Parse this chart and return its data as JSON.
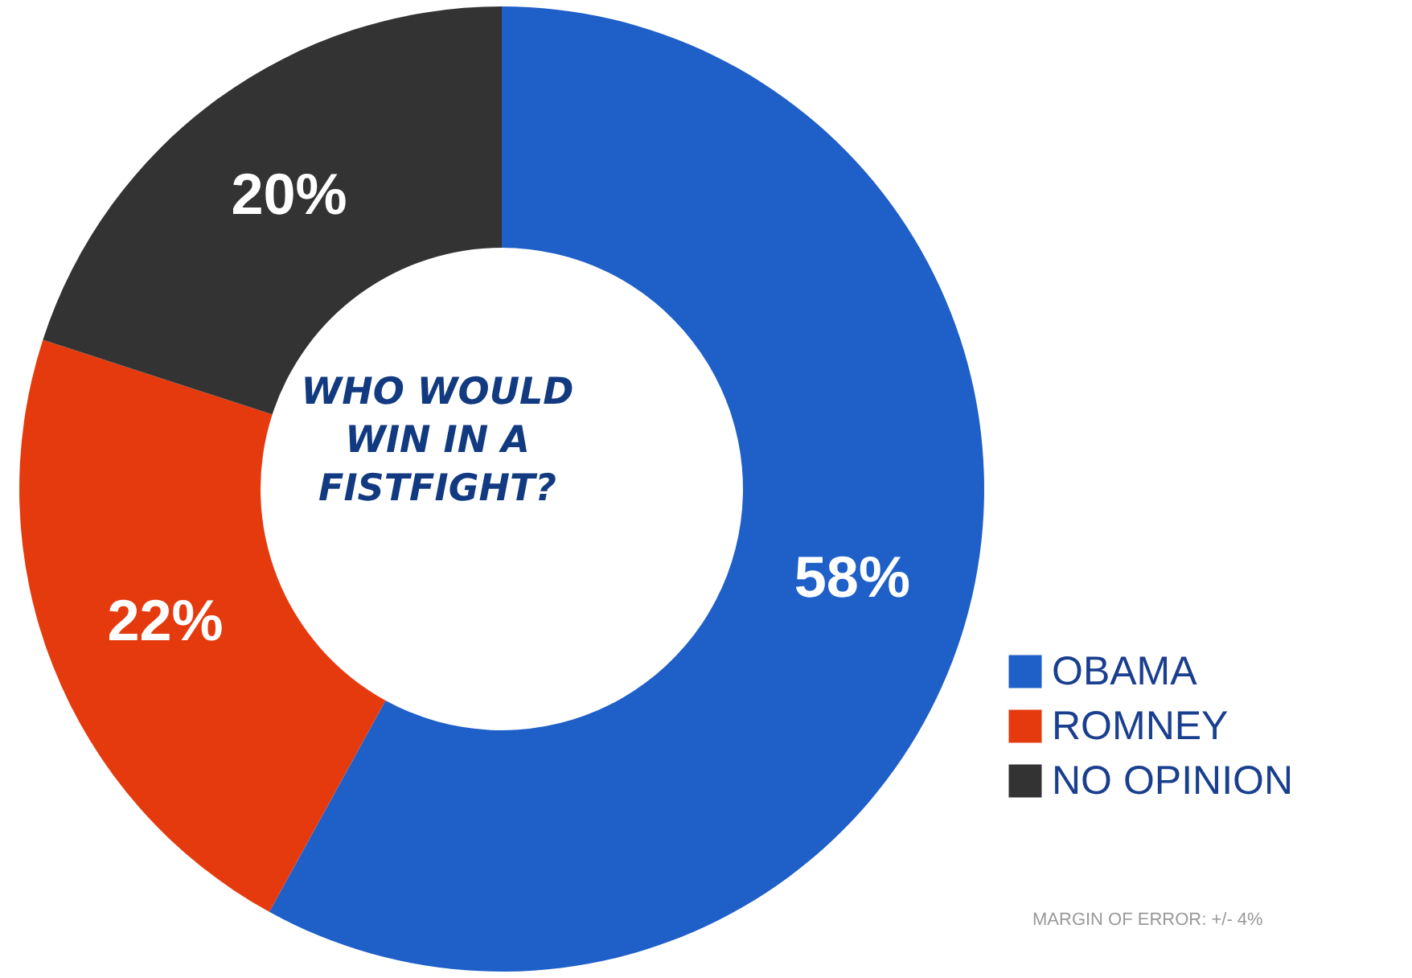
{
  "chart_data": {
    "type": "donut",
    "title": "WHO WOULD WIN IN A FISTFIGHT?",
    "categories": [
      "OBAMA",
      "ROMNEY",
      "NO OPINION"
    ],
    "values": [
      58,
      22,
      20
    ],
    "colors": [
      "#1f5fc8",
      "#e53a0e",
      "#333333"
    ],
    "value_labels": [
      "58%",
      "22%",
      "20%"
    ],
    "legend": "bottom right",
    "annotations": [
      "MARGIN OF ERROR: +/- 4%"
    ]
  }
}
